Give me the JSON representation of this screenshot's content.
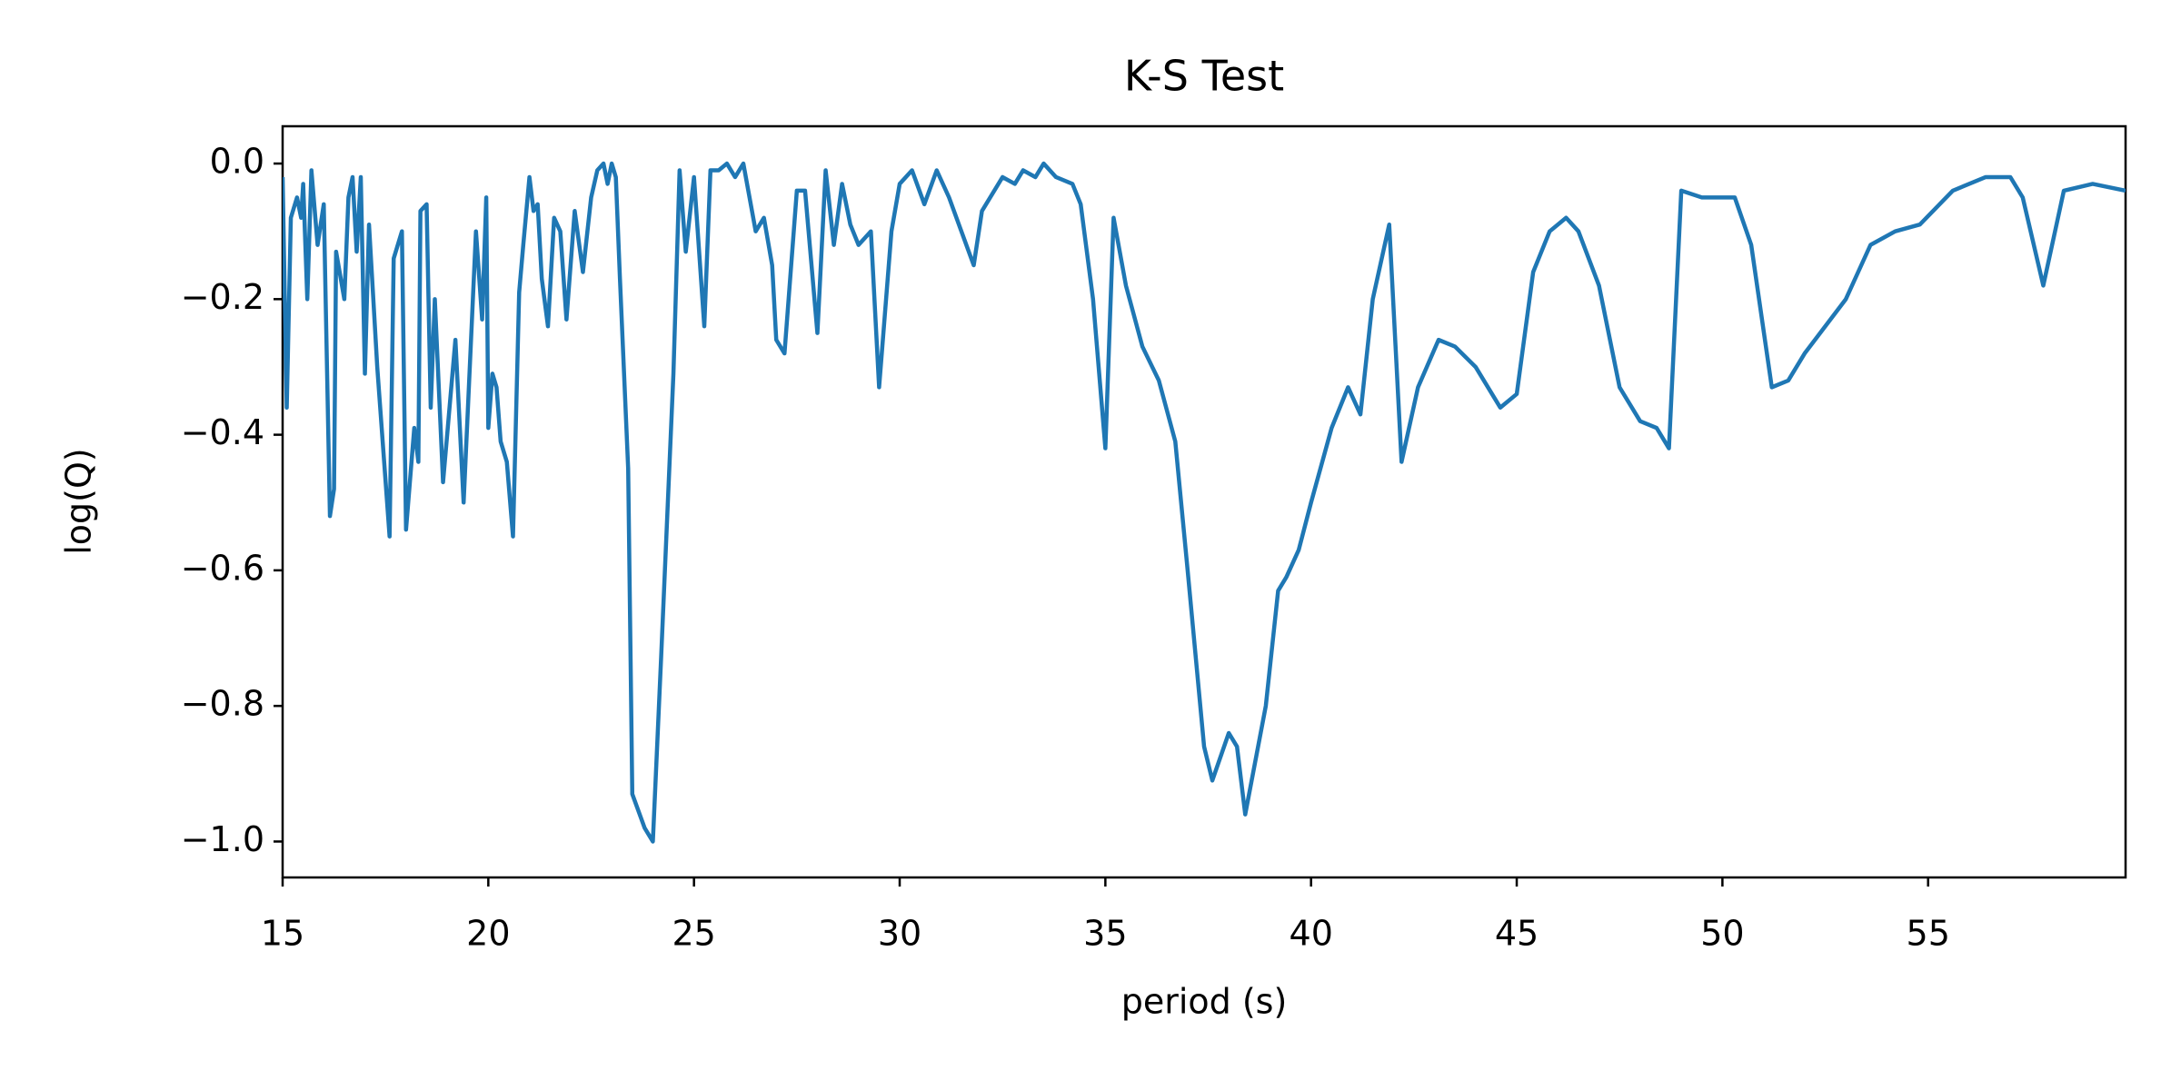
{
  "chart_data": {
    "type": "line",
    "title": "K-S Test",
    "xlabel": "period (s)",
    "ylabel": "log(Q)",
    "x": [
      15.0,
      15.1,
      15.2,
      15.35,
      15.45,
      15.5,
      15.6,
      15.7,
      15.85,
      16.0,
      16.15,
      16.25,
      16.3,
      16.5,
      16.6,
      16.7,
      16.8,
      16.9,
      17.0,
      17.1,
      17.3,
      17.6,
      17.7,
      17.9,
      18.0,
      18.2,
      18.3,
      18.35,
      18.5,
      18.6,
      18.7,
      18.9,
      19.2,
      19.4,
      19.7,
      19.85,
      19.95,
      20.0,
      20.1,
      20.2,
      20.3,
      20.45,
      20.6,
      20.75,
      20.85,
      21.0,
      21.1,
      21.2,
      21.3,
      21.45,
      21.6,
      21.75,
      21.9,
      22.1,
      22.3,
      22.5,
      22.65,
      22.8,
      22.9,
      23.0,
      23.1,
      23.2,
      23.4,
      23.5,
      23.8,
      24.0,
      24.2,
      24.5,
      24.65,
      24.8,
      25.0,
      25.25,
      25.4,
      25.6,
      25.8,
      26.0,
      26.2,
      26.5,
      26.7,
      26.9,
      27.0,
      27.2,
      27.5,
      27.7,
      28.0,
      28.2,
      28.4,
      28.6,
      28.8,
      29.0,
      29.3,
      29.5,
      29.8,
      30.0,
      30.3,
      30.6,
      30.9,
      31.2,
      31.8,
      32.0,
      32.5,
      32.8,
      33.0,
      33.3,
      33.5,
      33.8,
      34.2,
      34.4,
      34.7,
      35.0,
      35.2,
      35.5,
      35.9,
      36.3,
      36.7,
      37.0,
      37.4,
      37.6,
      38.0,
      38.2,
      38.4,
      38.9,
      39.2,
      39.4,
      39.7,
      40.0,
      40.5,
      40.9,
      41.2,
      41.5,
      41.9,
      42.2,
      42.6,
      43.1,
      43.5,
      44.0,
      44.6,
      45.0,
      45.4,
      45.8,
      46.2,
      46.5,
      47.0,
      47.5,
      48.0,
      48.4,
      48.7,
      49.0,
      49.5,
      50.0,
      50.3,
      50.7,
      51.2,
      51.6,
      52.0,
      53.0,
      53.6,
      54.2,
      54.8,
      55.6,
      56.4,
      57.0,
      57.3,
      57.8,
      58.3,
      59.0,
      59.8
    ],
    "values": [
      -0.02,
      -0.36,
      -0.08,
      -0.05,
      -0.08,
      -0.03,
      -0.2,
      -0.01,
      -0.12,
      -0.06,
      -0.52,
      -0.48,
      -0.13,
      -0.2,
      -0.05,
      -0.02,
      -0.13,
      -0.02,
      -0.31,
      -0.09,
      -0.3,
      -0.55,
      -0.14,
      -0.1,
      -0.54,
      -0.39,
      -0.44,
      -0.07,
      -0.06,
      -0.36,
      -0.2,
      -0.47,
      -0.26,
      -0.5,
      -0.1,
      -0.23,
      -0.05,
      -0.39,
      -0.31,
      -0.33,
      -0.41,
      -0.44,
      -0.55,
      -0.19,
      -0.12,
      -0.02,
      -0.07,
      -0.06,
      -0.17,
      -0.24,
      -0.08,
      -0.1,
      -0.23,
      -0.07,
      -0.16,
      -0.05,
      -0.01,
      0.0,
      -0.03,
      0.0,
      -0.02,
      -0.17,
      -0.45,
      -0.93,
      -0.98,
      -1.0,
      -0.73,
      -0.31,
      -0.01,
      -0.13,
      -0.02,
      -0.24,
      -0.01,
      -0.01,
      0.0,
      -0.02,
      0.0,
      -0.1,
      -0.08,
      -0.15,
      -0.26,
      -0.28,
      -0.04,
      -0.04,
      -0.25,
      -0.01,
      -0.12,
      -0.03,
      -0.09,
      -0.12,
      -0.1,
      -0.33,
      -0.1,
      -0.03,
      -0.01,
      -0.06,
      -0.01,
      -0.05,
      -0.15,
      -0.07,
      -0.02,
      -0.03,
      -0.01,
      -0.02,
      0.0,
      -0.02,
      -0.03,
      -0.06,
      -0.2,
      -0.42,
      -0.08,
      -0.18,
      -0.27,
      -0.32,
      -0.41,
      -0.6,
      -0.86,
      -0.91,
      -0.84,
      -0.86,
      -0.96,
      -0.8,
      -0.63,
      -0.61,
      -0.57,
      -0.5,
      -0.39,
      -0.33,
      -0.37,
      -0.2,
      -0.09,
      -0.44,
      -0.33,
      -0.26,
      -0.27,
      -0.3,
      -0.36,
      -0.34,
      -0.16,
      -0.1,
      -0.08,
      -0.1,
      -0.18,
      -0.33,
      -0.38,
      -0.39,
      -0.42,
      -0.04,
      -0.05,
      -0.05,
      -0.05,
      -0.12,
      -0.33,
      -0.32,
      -0.28,
      -0.2,
      -0.12,
      -0.1,
      -0.09,
      -0.04,
      -0.02,
      -0.02,
      -0.05,
      -0.18,
      -0.04,
      -0.03,
      -0.04
    ],
    "color": "#1f77b4",
    "xlim": [
      15,
      59.8
    ],
    "ylim": [
      -1.053,
      0.055
    ],
    "xticks": [
      15,
      20,
      25,
      30,
      35,
      40,
      45,
      50,
      55
    ],
    "yticks": [
      {
        "value": 0,
        "label": "0.0"
      },
      {
        "value": -0.2,
        "label": "−0.2"
      },
      {
        "value": -0.4,
        "label": "−0.4"
      },
      {
        "value": -0.6,
        "label": "−0.6"
      },
      {
        "value": -0.8,
        "label": "−0.8"
      },
      {
        "value": -1.0,
        "label": "−1.0"
      }
    ]
  }
}
